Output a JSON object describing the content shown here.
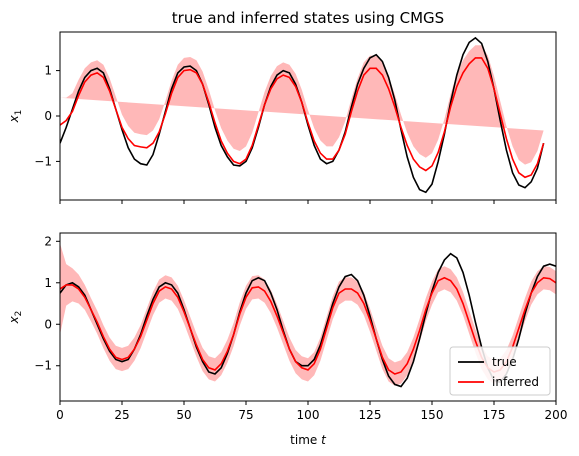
{
  "chart_data": {
    "type": "line",
    "title": "true and inferred states using CMGS",
    "x": [
      0,
      2.5,
      5,
      7.5,
      10,
      12.5,
      15,
      17.5,
      20,
      22.5,
      25,
      27.5,
      30,
      32.5,
      35,
      37.5,
      40,
      42.5,
      45,
      47.5,
      50,
      52.5,
      55,
      57.5,
      60,
      62.5,
      65,
      67.5,
      70,
      72.5,
      75,
      77.5,
      80,
      82.5,
      85,
      87.5,
      90,
      92.5,
      95,
      97.5,
      100,
      102.5,
      105,
      107.5,
      110,
      112.5,
      115,
      117.5,
      120,
      122.5,
      125,
      127.5,
      130,
      132.5,
      135,
      137.5,
      140,
      142.5,
      145,
      147.5,
      150,
      152.5,
      155,
      157.5,
      160,
      162.5,
      165,
      167.5,
      170,
      172.5,
      175,
      177.5,
      180,
      182.5,
      185,
      187.5,
      190,
      192.5,
      195,
      197.5,
      200
    ],
    "xlim": [
      0,
      200
    ],
    "xticks": [
      0,
      25,
      50,
      75,
      100,
      125,
      150,
      175,
      200
    ],
    "xlabel_prefix": "time",
    "xlabel_var": "t",
    "legend": {
      "location": "lower-right",
      "entries": [
        "true",
        "inferred"
      ]
    },
    "colors": {
      "true": "#000000",
      "inferred": "#ff0000",
      "band": "#ff9a9a",
      "frame": "#000000"
    },
    "subplots": [
      {
        "ylabel_var": "x",
        "ylabel_sub": "1",
        "ylim": [
          -1.85,
          1.85
        ],
        "yticks": [
          -1,
          0,
          1
        ],
        "true": [
          -0.6,
          -0.25,
          0.15,
          0.55,
          0.85,
          1.0,
          1.05,
          0.95,
          0.6,
          0.15,
          -0.3,
          -0.7,
          -0.95,
          -1.05,
          -1.08,
          -0.85,
          -0.4,
          0.1,
          0.6,
          0.95,
          1.08,
          1.1,
          1.0,
          0.7,
          0.25,
          -0.25,
          -0.65,
          -0.9,
          -1.08,
          -1.1,
          -1.0,
          -0.7,
          -0.25,
          0.25,
          0.65,
          0.9,
          1.0,
          0.95,
          0.7,
          0.3,
          -0.2,
          -0.65,
          -0.95,
          -1.05,
          -1.0,
          -0.75,
          -0.35,
          0.2,
          0.7,
          1.05,
          1.28,
          1.35,
          1.2,
          0.85,
          0.35,
          -0.3,
          -0.9,
          -1.35,
          -1.62,
          -1.68,
          -1.5,
          -1.0,
          -0.4,
          0.3,
          0.9,
          1.35,
          1.62,
          1.72,
          1.6,
          1.2,
          0.6,
          -0.1,
          -0.75,
          -1.25,
          -1.52,
          -1.58,
          -1.45,
          -1.15,
          -0.6
        ],
        "inferred": [
          -0.2,
          -0.1,
          0.1,
          0.45,
          0.75,
          0.9,
          0.95,
          0.85,
          0.55,
          0.15,
          -0.25,
          -0.5,
          -0.65,
          -0.68,
          -0.7,
          -0.6,
          -0.35,
          0.05,
          0.5,
          0.85,
          1.0,
          1.02,
          0.95,
          0.7,
          0.3,
          -0.15,
          -0.55,
          -0.82,
          -1.0,
          -1.05,
          -0.95,
          -0.65,
          -0.2,
          0.25,
          0.6,
          0.82,
          0.9,
          0.85,
          0.65,
          0.3,
          -0.15,
          -0.55,
          -0.82,
          -0.95,
          -0.95,
          -0.75,
          -0.4,
          0.1,
          0.55,
          0.9,
          1.05,
          1.05,
          0.9,
          0.6,
          0.2,
          -0.25,
          -0.65,
          -0.95,
          -1.12,
          -1.2,
          -1.1,
          -0.8,
          -0.35,
          0.2,
          0.65,
          0.95,
          1.15,
          1.28,
          1.28,
          1.05,
          0.6,
          0.05,
          -0.5,
          -0.95,
          -1.25,
          -1.35,
          -1.3,
          -1.05,
          -0.6
        ],
        "band_halfwidth": [
          0.6,
          0.5,
          0.4,
          0.35,
          0.3,
          0.28,
          0.28,
          0.28,
          0.28,
          0.28,
          0.28,
          0.28,
          0.28,
          0.28,
          0.28,
          0.28,
          0.28,
          0.28,
          0.28,
          0.28,
          0.28,
          0.28,
          0.28,
          0.28,
          0.28,
          0.28,
          0.28,
          0.28,
          0.28,
          0.28,
          0.28,
          0.28,
          0.28,
          0.28,
          0.28,
          0.28,
          0.28,
          0.28,
          0.28,
          0.28,
          0.28,
          0.28,
          0.28,
          0.28,
          0.28,
          0.28,
          0.28,
          0.28,
          0.28,
          0.28,
          0.28,
          0.28,
          0.28,
          0.28,
          0.28,
          0.28,
          0.28,
          0.28,
          0.28,
          0.28,
          0.28,
          0.28,
          0.28,
          0.28,
          0.28,
          0.28,
          0.28,
          0.28,
          0.28,
          0.28,
          0.28,
          0.28,
          0.28,
          0.28,
          0.28,
          0.28,
          0.28,
          0.28,
          0.28,
          0.28,
          0.28
        ]
      },
      {
        "ylabel_var": "x",
        "ylabel_sub": "2",
        "ylim": [
          -1.85,
          2.2
        ],
        "yticks": [
          -1,
          0,
          1,
          2
        ],
        "true": [
          0.75,
          0.95,
          1.0,
          0.9,
          0.7,
          0.35,
          0.0,
          -0.35,
          -0.65,
          -0.85,
          -0.9,
          -0.85,
          -0.6,
          -0.25,
          0.2,
          0.6,
          0.9,
          1.0,
          0.95,
          0.75,
          0.35,
          -0.1,
          -0.55,
          -0.9,
          -1.15,
          -1.2,
          -1.05,
          -0.7,
          -0.25,
          0.3,
          0.75,
          1.05,
          1.12,
          1.05,
          0.75,
          0.35,
          -0.15,
          -0.6,
          -0.9,
          -1.0,
          -1.0,
          -0.85,
          -0.5,
          0.0,
          0.5,
          0.9,
          1.15,
          1.2,
          1.05,
          0.7,
          0.2,
          -0.35,
          -0.85,
          -1.25,
          -1.45,
          -1.5,
          -1.3,
          -0.9,
          -0.35,
          0.25,
          0.8,
          1.25,
          1.55,
          1.7,
          1.6,
          1.25,
          0.7,
          0.05,
          -0.55,
          -1.05,
          -1.35,
          -1.4,
          -1.2,
          -0.85,
          -0.35,
          0.25,
          0.75,
          1.15,
          1.4,
          1.45,
          1.4
        ],
        "inferred": [
          0.85,
          0.95,
          0.95,
          0.85,
          0.65,
          0.35,
          0.05,
          -0.3,
          -0.6,
          -0.8,
          -0.85,
          -0.8,
          -0.6,
          -0.3,
          0.1,
          0.5,
          0.8,
          0.9,
          0.85,
          0.65,
          0.3,
          -0.1,
          -0.5,
          -0.85,
          -1.05,
          -1.1,
          -0.95,
          -0.65,
          -0.25,
          0.25,
          0.65,
          0.88,
          0.9,
          0.8,
          0.55,
          0.2,
          -0.2,
          -0.6,
          -0.9,
          -1.05,
          -1.1,
          -0.95,
          -0.6,
          -0.1,
          0.4,
          0.75,
          0.85,
          0.85,
          0.75,
          0.5,
          0.1,
          -0.35,
          -0.8,
          -1.1,
          -1.2,
          -1.15,
          -0.95,
          -0.6,
          -0.15,
          0.35,
          0.75,
          1.05,
          1.12,
          1.05,
          0.85,
          0.5,
          0.05,
          -0.4,
          -0.8,
          -1.05,
          -1.15,
          -1.1,
          -0.9,
          -0.55,
          -0.1,
          0.35,
          0.75,
          1.0,
          1.12,
          1.1,
          1.0
        ],
        "band_halfwidth": [
          1.1,
          0.5,
          0.4,
          0.35,
          0.3,
          0.28,
          0.28,
          0.28,
          0.28,
          0.28,
          0.28,
          0.28,
          0.28,
          0.28,
          0.28,
          0.28,
          0.28,
          0.28,
          0.28,
          0.28,
          0.28,
          0.28,
          0.28,
          0.28,
          0.28,
          0.28,
          0.28,
          0.28,
          0.28,
          0.28,
          0.28,
          0.28,
          0.28,
          0.28,
          0.28,
          0.28,
          0.28,
          0.28,
          0.28,
          0.28,
          0.28,
          0.28,
          0.28,
          0.28,
          0.28,
          0.28,
          0.28,
          0.28,
          0.28,
          0.28,
          0.28,
          0.28,
          0.28,
          0.28,
          0.28,
          0.28,
          0.28,
          0.28,
          0.28,
          0.28,
          0.28,
          0.28,
          0.28,
          0.28,
          0.28,
          0.28,
          0.28,
          0.28,
          0.28,
          0.28,
          0.28,
          0.28,
          0.28,
          0.28,
          0.28,
          0.28,
          0.28,
          0.28,
          0.28,
          0.28,
          0.28
        ]
      }
    ]
  }
}
